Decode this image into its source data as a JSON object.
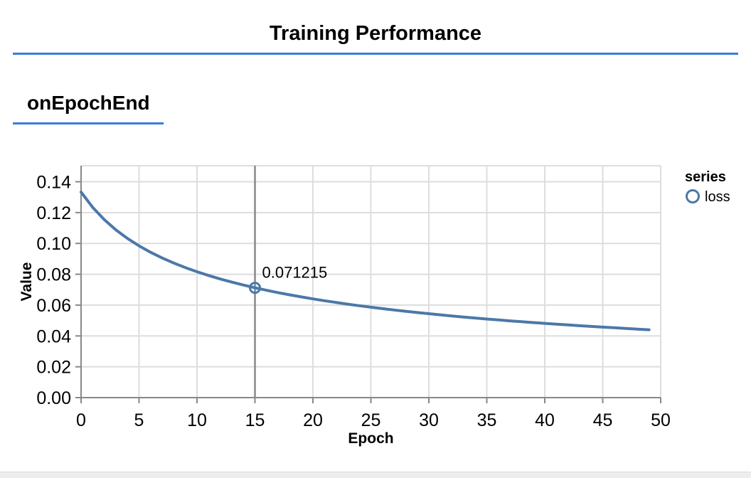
{
  "window": {
    "title": "Training Performance",
    "section_label": "onEpochEnd",
    "accent_color": "#357edd"
  },
  "chart_data": {
    "type": "line",
    "title": "",
    "xlabel": "Epoch",
    "ylabel": "Value",
    "xlim": [
      0,
      50
    ],
    "ylim": [
      0,
      0.14
    ],
    "x_ticks": [
      0,
      5,
      10,
      15,
      20,
      25,
      30,
      35,
      40,
      45,
      50
    ],
    "y_ticks": [
      0,
      0.02,
      0.04,
      0.06,
      0.08,
      0.1,
      0.12,
      0.14
    ],
    "y_tick_decimals": 2,
    "grid": true,
    "colors": {
      "grid": "#dddddd",
      "axis": "#888888",
      "text": "#000000"
    },
    "legend": {
      "title": "series",
      "position": "right",
      "entries": [
        {
          "label": "loss",
          "symbol": "circle",
          "color": "#4c78a8"
        }
      ]
    },
    "series": [
      {
        "name": "loss",
        "color": "#4c78a8",
        "x": [
          0,
          1,
          2,
          3,
          4,
          5,
          6,
          7,
          8,
          9,
          10,
          11,
          12,
          13,
          14,
          15,
          16,
          17,
          18,
          19,
          20,
          21,
          22,
          23,
          24,
          25,
          26,
          27,
          28,
          29,
          30,
          31,
          32,
          33,
          34,
          35,
          36,
          37,
          38,
          39,
          40,
          41,
          42,
          43,
          44,
          45,
          46,
          47,
          48,
          49
        ],
        "y": [
          0.133293,
          0.123405,
          0.115435,
          0.108833,
          0.103248,
          0.098443,
          0.094252,
          0.090555,
          0.087261,
          0.084302,
          0.081625,
          0.079188,
          0.076957,
          0.074904,
          0.073008,
          0.071215,
          0.06961,
          0.06808,
          0.066646,
          0.0653,
          0.064032,
          0.062835,
          0.061703,
          0.060629,
          0.059611,
          0.058641,
          0.057718,
          0.056836,
          0.055994,
          0.055188,
          0.054417,
          0.053676,
          0.052965,
          0.052282,
          0.051624,
          0.050991,
          0.05038,
          0.049791,
          0.049222,
          0.048672,
          0.04814,
          0.047625,
          0.047126,
          0.046643,
          0.046174,
          0.045719,
          0.045278,
          0.044848,
          0.044431,
          0.044025
        ]
      }
    ],
    "cursor": {
      "x": 15,
      "y": 0.071215,
      "label": "0.071215",
      "rule_color": "#888888"
    }
  }
}
